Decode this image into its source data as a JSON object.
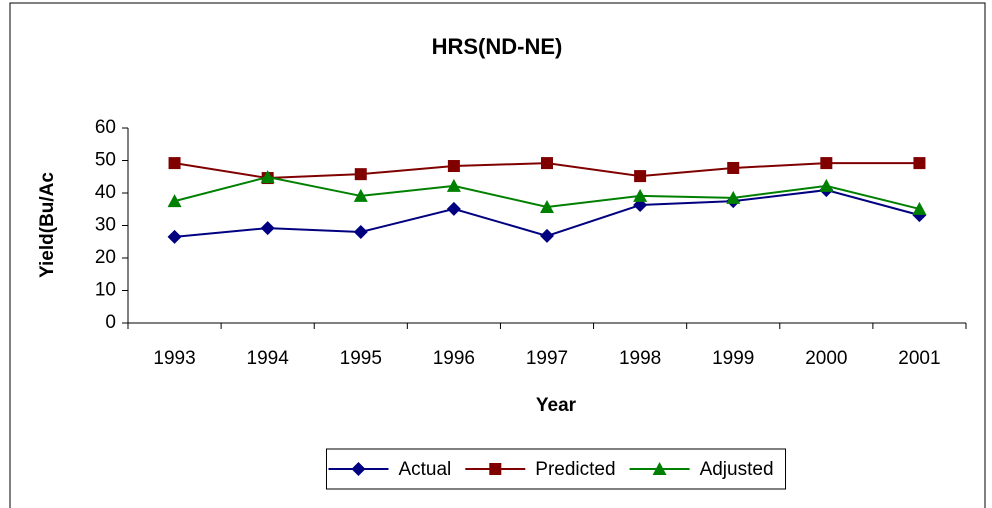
{
  "chart_data": {
    "type": "line",
    "title": "HRS(ND-NE)",
    "x_label": "Year",
    "y_label": "Yield(Bu/Ac",
    "categories": [
      "1993",
      "1994",
      "1995",
      "1996",
      "1997",
      "1998",
      "1999",
      "2000",
      "2001"
    ],
    "series": [
      {
        "name": "Actual",
        "color": "#000080",
        "marker": "diamond",
        "values": [
          26.5,
          29.2,
          28,
          35.1,
          26.8,
          36.3,
          37.5,
          40.9,
          33.2
        ]
      },
      {
        "name": "Predicted",
        "color": "#800000",
        "marker": "square",
        "values": [
          49.2,
          44.6,
          45.8,
          48.3,
          49.2,
          45.2,
          47.7,
          49.2,
          49.2
        ]
      },
      {
        "name": "Adjusted",
        "color": "#008000",
        "marker": "triangle",
        "values": [
          37.5,
          44.9,
          39.1,
          42.2,
          35.7,
          39.1,
          38.5,
          42.2,
          35.1
        ]
      }
    ],
    "ylim": [
      0,
      60
    ],
    "yticks": [
      0,
      10,
      20,
      30,
      40,
      50,
      60
    ],
    "grid": false,
    "legend": "bottom"
  }
}
